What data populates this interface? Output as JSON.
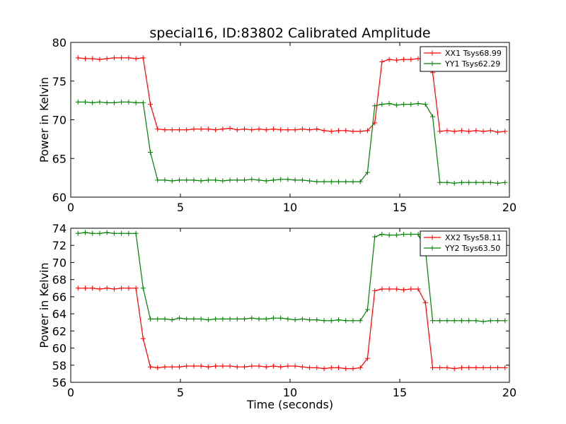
{
  "chart_data": {
    "type": "line",
    "title": "special16, ID:83802 Calibrated Amplitude",
    "xlabel": "Time (seconds)",
    "x": [
      0.33,
      0.66,
      0.99,
      1.32,
      1.65,
      1.98,
      2.31,
      2.64,
      2.97,
      3.3,
      3.63,
      3.96,
      4.29,
      4.62,
      4.95,
      5.28,
      5.61,
      5.94,
      6.27,
      6.6,
      6.93,
      7.26,
      7.59,
      7.92,
      8.25,
      8.58,
      8.91,
      9.24,
      9.57,
      9.9,
      10.23,
      10.56,
      10.89,
      11.22,
      11.55,
      11.88,
      12.21,
      12.54,
      12.87,
      13.2,
      13.53,
      13.86,
      14.19,
      14.52,
      14.85,
      15.18,
      15.51,
      15.84,
      16.17,
      16.5,
      16.83,
      17.16,
      17.49,
      17.82,
      18.15,
      18.48,
      18.81,
      19.14,
      19.47,
      19.8
    ],
    "panels": [
      {
        "ylabel": "Power in Kelvin",
        "xlim": [
          0,
          20
        ],
        "ylim": [
          60,
          80
        ],
        "xticks": [
          0,
          5,
          10,
          15,
          20
        ],
        "yticks": [
          60,
          65,
          70,
          75,
          80
        ],
        "legend_position": "top-right",
        "series": [
          {
            "name": "XX1 Tsys68.99",
            "color": "#ff0000",
            "values": [
              78.0,
              77.9,
              77.9,
              77.8,
              77.9,
              78.0,
              78.0,
              78.0,
              77.9,
              78.0,
              72.0,
              68.8,
              68.7,
              68.7,
              68.7,
              68.7,
              68.8,
              68.8,
              68.8,
              68.7,
              68.8,
              68.9,
              68.7,
              68.8,
              68.7,
              68.8,
              68.7,
              68.8,
              68.7,
              68.7,
              68.7,
              68.8,
              68.7,
              68.8,
              68.6,
              68.5,
              68.6,
              68.6,
              68.5,
              68.5,
              68.6,
              69.6,
              77.5,
              77.8,
              77.7,
              77.8,
              77.8,
              77.9,
              77.8,
              76.1,
              68.5,
              68.6,
              68.5,
              68.6,
              68.5,
              68.6,
              68.5,
              68.6,
              68.4,
              68.5
            ]
          },
          {
            "name": "YY1 Tsys62.29",
            "color": "#008000",
            "values": [
              72.3,
              72.3,
              72.2,
              72.3,
              72.2,
              72.2,
              72.3,
              72.3,
              72.2,
              72.2,
              65.8,
              62.2,
              62.2,
              62.1,
              62.2,
              62.2,
              62.2,
              62.1,
              62.2,
              62.2,
              62.1,
              62.2,
              62.2,
              62.2,
              62.3,
              62.2,
              62.1,
              62.2,
              62.3,
              62.3,
              62.2,
              62.2,
              62.1,
              62.0,
              62.0,
              62.0,
              62.0,
              62.0,
              62.0,
              62.0,
              63.2,
              71.8,
              72.0,
              72.1,
              71.9,
              72.0,
              72.0,
              72.1,
              72.0,
              70.4,
              61.9,
              61.9,
              61.8,
              61.9,
              61.9,
              61.9,
              61.9,
              61.9,
              61.8,
              61.9
            ]
          }
        ]
      },
      {
        "ylabel": "Power in Kelvin",
        "xlim": [
          0,
          20
        ],
        "ylim": [
          56,
          74
        ],
        "xticks": [
          0,
          5,
          10,
          15,
          20
        ],
        "yticks": [
          56,
          58,
          60,
          62,
          64,
          66,
          68,
          70,
          72,
          74
        ],
        "legend_position": "top-right",
        "series": [
          {
            "name": "XX2 Tsys58.11",
            "color": "#ff0000",
            "values": [
              67.0,
              67.0,
              67.0,
              66.9,
              67.0,
              66.9,
              67.0,
              67.0,
              67.0,
              61.1,
              57.8,
              57.7,
              57.8,
              57.8,
              57.8,
              57.9,
              57.9,
              57.9,
              57.8,
              57.9,
              57.9,
              57.9,
              57.8,
              57.8,
              57.9,
              57.9,
              57.8,
              57.9,
              57.8,
              57.9,
              57.9,
              57.8,
              57.7,
              57.7,
              57.6,
              57.7,
              57.7,
              57.6,
              57.6,
              57.7,
              58.8,
              66.7,
              66.9,
              66.9,
              66.9,
              66.8,
              66.9,
              66.9,
              65.3,
              57.7,
              57.7,
              57.7,
              57.6,
              57.7,
              57.7,
              57.7,
              57.7,
              57.7,
              57.7,
              57.7
            ]
          },
          {
            "name": "YY2 Tsys63.50",
            "color": "#008000",
            "values": [
              73.4,
              73.5,
              73.4,
              73.4,
              73.5,
              73.4,
              73.4,
              73.4,
              73.4,
              67.0,
              63.4,
              63.4,
              63.4,
              63.3,
              63.5,
              63.4,
              63.4,
              63.4,
              63.3,
              63.4,
              63.4,
              63.4,
              63.4,
              63.4,
              63.5,
              63.4,
              63.4,
              63.5,
              63.5,
              63.4,
              63.3,
              63.4,
              63.3,
              63.3,
              63.2,
              63.2,
              63.3,
              63.2,
              63.2,
              63.2,
              64.5,
              73.0,
              73.3,
              73.2,
              73.2,
              73.3,
              73.3,
              73.3,
              71.5,
              63.2,
              63.2,
              63.2,
              63.2,
              63.2,
              63.2,
              63.2,
              63.1,
              63.2,
              63.2,
              63.2
            ]
          }
        ]
      }
    ]
  }
}
